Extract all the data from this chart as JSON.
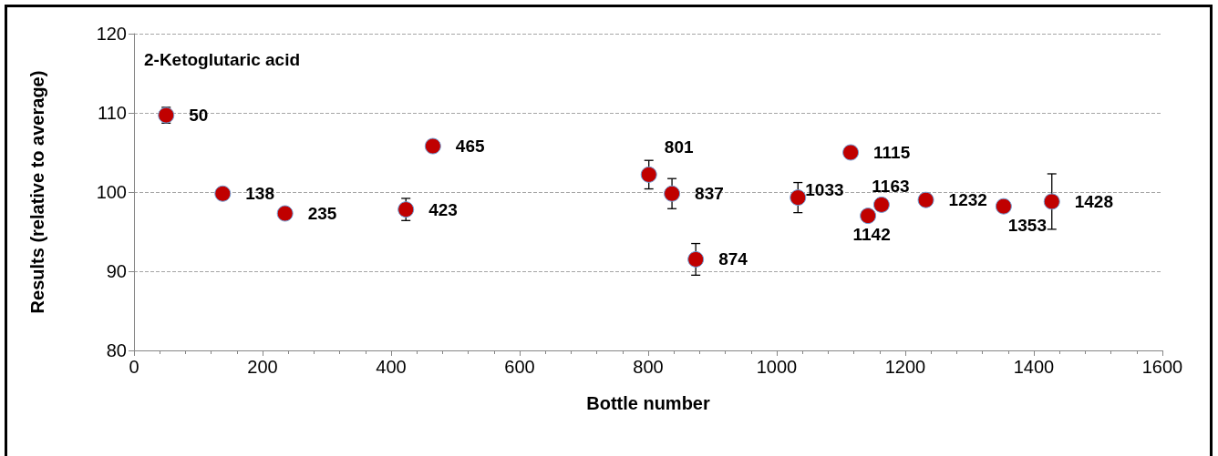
{
  "chart_data": {
    "type": "scatter",
    "title": "2-Ketoglutaric acid",
    "xlabel": "Bottle number",
    "ylabel": "Results (relative to average)",
    "x": [
      50,
      138,
      235,
      423,
      465,
      801,
      837,
      874,
      1033,
      1115,
      1142,
      1163,
      1232,
      1353,
      1428
    ],
    "values": [
      109.7,
      99.8,
      97.3,
      97.8,
      105.8,
      102.2,
      99.8,
      91.5,
      99.3,
      105.0,
      97.0,
      98.4,
      99.0,
      98.2,
      98.8
    ],
    "errors": [
      1.0,
      null,
      null,
      1.4,
      null,
      1.8,
      1.9,
      2.0,
      1.9,
      null,
      null,
      null,
      null,
      null,
      3.5
    ],
    "annotations": [
      {
        "text": "50",
        "x": 50,
        "y": 109.7
      },
      {
        "text": "138",
        "x": 138,
        "y": 99.8
      },
      {
        "text": "235",
        "x": 235,
        "y": 97.3
      },
      {
        "text": "423",
        "x": 423,
        "y": 97.8
      },
      {
        "text": "465",
        "x": 465,
        "y": 105.8
      },
      {
        "text": "801",
        "x": 801,
        "y": 102.2
      },
      {
        "text": "837",
        "x": 837,
        "y": 99.8
      },
      {
        "text": "874",
        "x": 874,
        "y": 91.5
      },
      {
        "text": "1033",
        "x": 1033,
        "y": 99.3
      },
      {
        "text": "1115",
        "x": 1115,
        "y": 105.0
      },
      {
        "text": "1142",
        "x": 1142,
        "y": 97.0
      },
      {
        "text": "1163",
        "x": 1163,
        "y": 98.4
      },
      {
        "text": "1232",
        "x": 1232,
        "y": 99.0
      },
      {
        "text": "1353",
        "x": 1353,
        "y": 98.2
      },
      {
        "text": "1428",
        "x": 1428,
        "y": 98.8
      }
    ],
    "color": "#c00000",
    "marker": "circle",
    "xlim": [
      0,
      1600
    ],
    "xticks": [
      0,
      {
        "value": 40,
        "label": null
      },
      {
        "value": 80,
        "label": null
      },
      {
        "value": 120,
        "label": null
      },
      {
        "value": 160,
        "label": null
      },
      200,
      {
        "value": 240,
        "label": null
      },
      {
        "value": 280,
        "label": null
      },
      {
        "value": 320,
        "label": null
      },
      {
        "value": 360,
        "label": null
      },
      400,
      {
        "value": 440,
        "label": null
      },
      {
        "value": 480,
        "label": null
      },
      {
        "value": 520,
        "label": null
      },
      {
        "value": 560,
        "label": null
      },
      600,
      {
        "value": 640,
        "label": null
      },
      {
        "value": 680,
        "label": null
      },
      {
        "value": 720,
        "label": null
      },
      {
        "value": 760,
        "label": null
      },
      800,
      {
        "value": 840,
        "label": null
      },
      {
        "value": 880,
        "label": null
      },
      {
        "value": 920,
        "label": null
      },
      {
        "value": 960,
        "label": null
      },
      1000,
      {
        "value": 1040,
        "label": null
      },
      {
        "value": 1080,
        "label": null
      },
      {
        "value": 1120,
        "label": null
      },
      {
        "value": 1160,
        "label": null
      },
      1200,
      {
        "value": 1240,
        "label": null
      },
      {
        "value": 1280,
        "label": null
      },
      {
        "value": 1320,
        "label": null
      },
      {
        "value": 1360,
        "label": null
      },
      1400,
      {
        "value": 1440,
        "label": null
      },
      {
        "value": 1480,
        "label": null
      },
      {
        "value": 1520,
        "label": null
      },
      {
        "value": 1560,
        "label": null
      },
      1600
    ],
    "ylim": [
      80,
      120
    ],
    "yticks": [
      80,
      90,
      100,
      110,
      120
    ],
    "grid": "y"
  }
}
